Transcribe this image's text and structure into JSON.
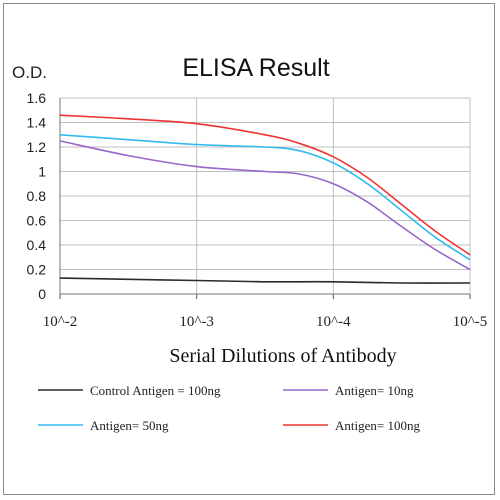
{
  "chart_data": {
    "type": "line",
    "title": "ELISA Result",
    "ylabel": "O.D.",
    "xlabel": "Serial  Dilutions   of Antibody",
    "x_ticks": [
      "10^-2",
      "10^-3",
      "10^-4",
      "10^-5"
    ],
    "y_ticks": [
      "0",
      "0.2",
      "0.4",
      "0.6",
      "0.8",
      "1",
      "1.2",
      "1.4",
      "1.6"
    ],
    "ylim": [
      0,
      1.6
    ],
    "xlim_log10": [
      -2,
      -5
    ],
    "grid": "vertical and horizontal",
    "legend_position": "bottom",
    "series": [
      {
        "name": "Control Antigen = 100ng",
        "color": "#2a2a2a",
        "points": [
          [
            -2,
            0.13
          ],
          [
            -2.5,
            0.12
          ],
          [
            -3,
            0.11
          ],
          [
            -3.5,
            0.1
          ],
          [
            -4,
            0.1
          ],
          [
            -4.5,
            0.09
          ],
          [
            -5,
            0.09
          ]
        ]
      },
      {
        "name": "Antigen= 10ng",
        "color": "#9966cc",
        "points": [
          [
            -2,
            1.25
          ],
          [
            -2.5,
            1.13
          ],
          [
            -3,
            1.04
          ],
          [
            -3.5,
            1.0
          ],
          [
            -3.75,
            0.98
          ],
          [
            -4,
            0.9
          ],
          [
            -4.25,
            0.75
          ],
          [
            -4.5,
            0.55
          ],
          [
            -4.75,
            0.36
          ],
          [
            -5,
            0.2
          ]
        ]
      },
      {
        "name": "Antigen= 50ng",
        "color": "#33bbee",
        "points": [
          [
            -2,
            1.3
          ],
          [
            -2.5,
            1.26
          ],
          [
            -3,
            1.22
          ],
          [
            -3.5,
            1.2
          ],
          [
            -3.75,
            1.17
          ],
          [
            -4,
            1.07
          ],
          [
            -4.25,
            0.9
          ],
          [
            -4.5,
            0.68
          ],
          [
            -4.75,
            0.46
          ],
          [
            -5,
            0.28
          ]
        ]
      },
      {
        "name": "Antigen= 100ng",
        "color": "#ee3333",
        "points": [
          [
            -2,
            1.46
          ],
          [
            -2.5,
            1.43
          ],
          [
            -3,
            1.39
          ],
          [
            -3.5,
            1.3
          ],
          [
            -3.75,
            1.23
          ],
          [
            -4,
            1.12
          ],
          [
            -4.25,
            0.95
          ],
          [
            -4.5,
            0.73
          ],
          [
            -4.75,
            0.51
          ],
          [
            -5,
            0.32
          ]
        ]
      }
    ]
  }
}
